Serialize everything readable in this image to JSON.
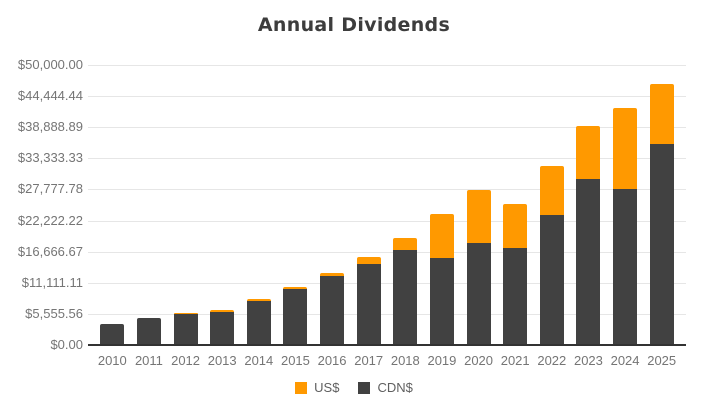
{
  "title": "Annual Dividends",
  "colors": {
    "us": "#ff9900",
    "cdn": "#414141",
    "grid": "#e6e6e6",
    "axis_line": "#333333",
    "tick_label": "#757575",
    "legend_label": "#5f5f5f",
    "title_text": "#3d3d3d",
    "background": "#ffffff"
  },
  "chart_data": {
    "type": "bar",
    "stacked": true,
    "title": "Annual Dividends",
    "categories": [
      "2010",
      "2011",
      "2012",
      "2013",
      "2014",
      "2015",
      "2016",
      "2017",
      "2018",
      "2019",
      "2020",
      "2021",
      "2022",
      "2023",
      "2024",
      "2025"
    ],
    "series": [
      {
        "name": "US$",
        "color": "#ff9900",
        "values": [
          0,
          0,
          250,
          300,
          300,
          400,
          500,
          1200,
          2100,
          7800,
          9500,
          7900,
          8700,
          9500,
          14400,
          10800
        ]
      },
      {
        "name": "CDN$",
        "color": "#414141",
        "values": [
          3500,
          4600,
          5300,
          5800,
          7700,
          9900,
          12100,
          14300,
          16700,
          15300,
          18100,
          17100,
          23000,
          29500,
          27600,
          35700
        ]
      }
    ],
    "ylim": [
      0,
      50000
    ],
    "yticks": [
      0,
      5555.56,
      11111.11,
      16666.67,
      22222.22,
      27777.78,
      33333.33,
      38888.89,
      44444.44,
      50000
    ],
    "ytick_labels": [
      "$0.00",
      "$5,555.56",
      "$11,111.11",
      "$16,666.67",
      "$22,222.22",
      "$27,777.78",
      "$33,333.33",
      "$38,888.89",
      "$44,444.44",
      "$50,000.00"
    ],
    "xlabel": "",
    "ylabel": "",
    "grid": true,
    "legend_position": "bottom"
  }
}
